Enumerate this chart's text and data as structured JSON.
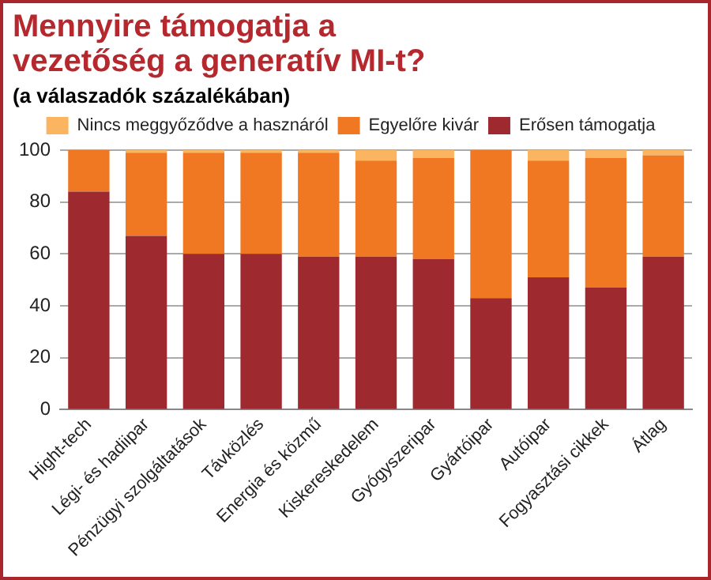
{
  "chart_data": {
    "type": "bar",
    "title": "Mennyire támogatja a vezetőség a generatív MI-t?",
    "subtitle": "(a válaszadók százalékában)",
    "categories": [
      "Hight-tech",
      "Légi- és hadiipar",
      "Pénzügyi szolgáltatások",
      "Távközlés",
      "Energia és közmű",
      "Kiskereskedelem",
      "Gyógyszeripar",
      "Gyártóipar",
      "Autóipar",
      "Fogyasztási cikkek",
      "Átlag"
    ],
    "stacked": true,
    "series": [
      {
        "name": "Erősen támogatja",
        "color": "#9e2a30",
        "values": [
          84,
          67,
          60,
          60,
          59,
          59,
          58,
          43,
          51,
          47,
          59
        ]
      },
      {
        "name": "Egyelőre kivár",
        "color": "#f07822",
        "values": [
          16,
          32,
          39,
          39,
          40,
          37,
          39,
          57,
          45,
          50,
          39
        ]
      },
      {
        "name": "Nincs meggyőződve a hasznáról",
        "color": "#fbb560",
        "values": [
          0,
          1,
          1,
          1,
          1,
          4,
          3,
          0,
          4,
          3,
          2
        ]
      }
    ],
    "ylim": [
      0,
      100
    ],
    "yticks": [
      0,
      20,
      40,
      60,
      80,
      100
    ],
    "grid": "y",
    "legend": "top"
  }
}
